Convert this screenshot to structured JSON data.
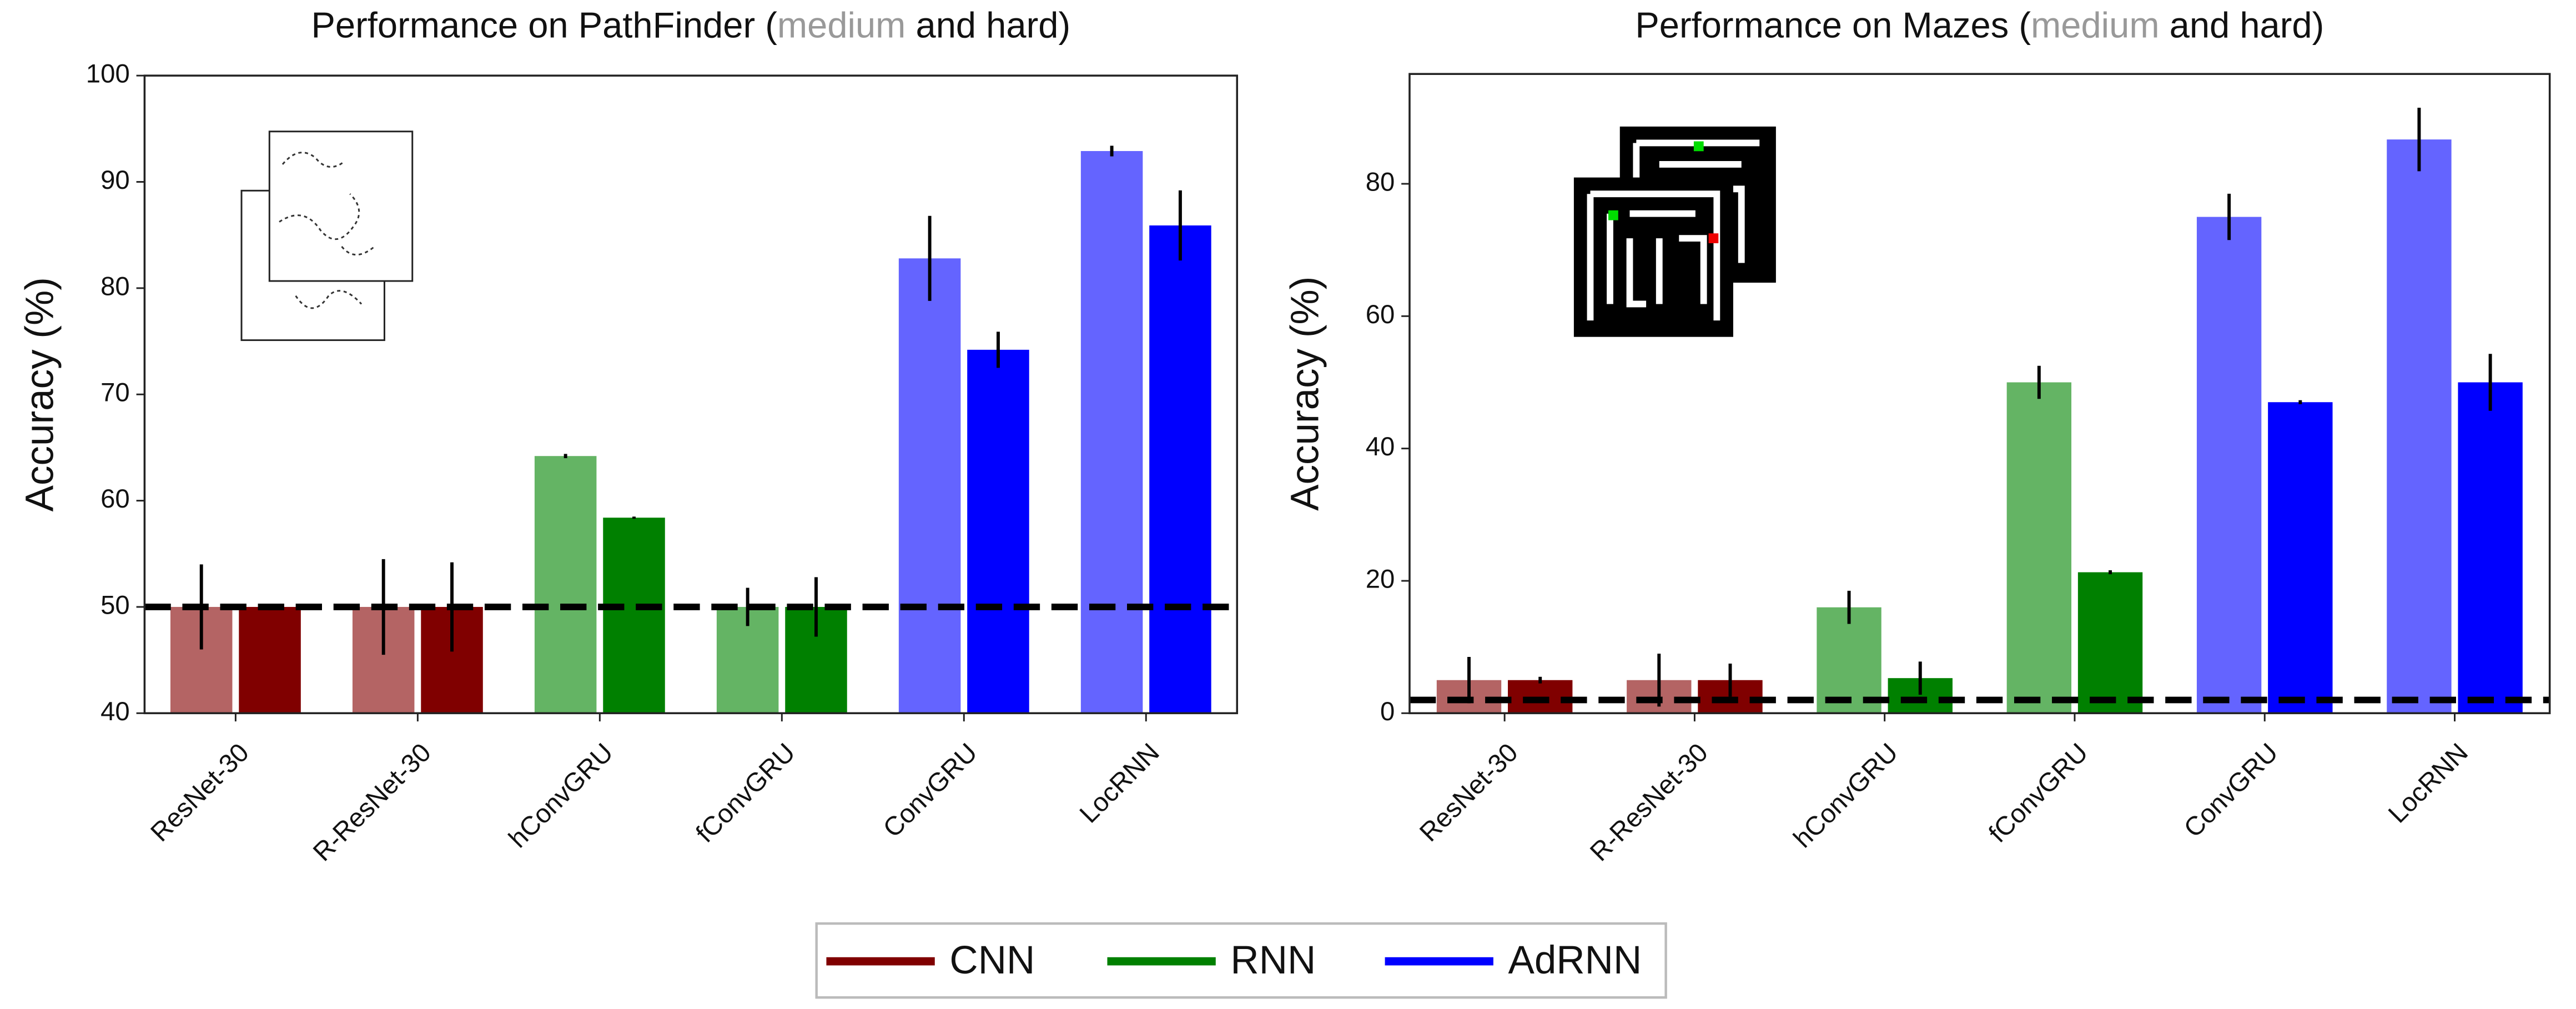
{
  "chart_data": [
    {
      "type": "bar",
      "title": [
        "Performance on PathFinder (",
        "medium",
        " and hard)"
      ],
      "y_label": "Accuracy (%)",
      "categories": [
        "ResNet-30",
        "R-ResNet-30",
        "hConvGRU",
        "fConvGRU",
        "ConvGRU",
        "LocRNN"
      ],
      "series": [
        {
          "values": [
            50,
            50,
            64.2,
            50,
            82.8,
            92.9
          ],
          "errors": [
            4,
            4.5,
            0.2,
            1.8,
            4,
            0.5
          ],
          "colors": [
            "#b46464",
            "#b46464",
            "#64b464",
            "#64b464",
            "#6464ff",
            "#6464ff"
          ]
        },
        {
          "values": [
            50,
            50,
            58.4,
            50,
            74.2,
            85.9
          ],
          "errors": [
            0.3,
            4.2,
            0.1,
            2.8,
            1.7,
            3.3
          ],
          "colors": [
            "#800000",
            "#800000",
            "#008000",
            "#008000",
            "#0000ff",
            "#0000ff"
          ]
        }
      ],
      "chance": 50,
      "ylim": [
        40,
        100
      ],
      "yticks": [
        40,
        50,
        60,
        70,
        80,
        90,
        100
      ]
    },
    {
      "type": "bar",
      "title": [
        "Performance on Mazes (",
        "medium",
        " and hard)"
      ],
      "y_label": "Accuracy (%)",
      "categories": [
        "ResNet-30",
        "R-ResNet-30",
        "hConvGRU",
        "fConvGRU",
        "ConvGRU",
        "LocRNN"
      ],
      "series": [
        {
          "values": [
            5,
            5,
            16,
            50,
            75,
            86.7
          ],
          "errors": [
            3.5,
            4,
            2.5,
            2.5,
            3.5,
            4.8
          ],
          "colors": [
            "#b46464",
            "#b46464",
            "#64b464",
            "#64b464",
            "#6464ff",
            "#6464ff"
          ]
        },
        {
          "values": [
            5,
            5,
            5.3,
            21.3,
            47,
            50
          ],
          "errors": [
            0.5,
            2.5,
            2.5,
            0.3,
            0.3,
            4.3
          ],
          "colors": [
            "#800000",
            "#800000",
            "#008000",
            "#008000",
            "#0000ff",
            "#0000ff"
          ]
        }
      ],
      "chance": 2,
      "ylim": [
        0,
        96.6
      ],
      "yticks": [
        0,
        20,
        40,
        60,
        80
      ]
    }
  ],
  "legend": [
    {
      "name": "CNN",
      "color": "#800000"
    },
    {
      "name": "RNN",
      "color": "#008000"
    },
    {
      "name": "AdRNN",
      "color": "#0000ff"
    }
  ]
}
